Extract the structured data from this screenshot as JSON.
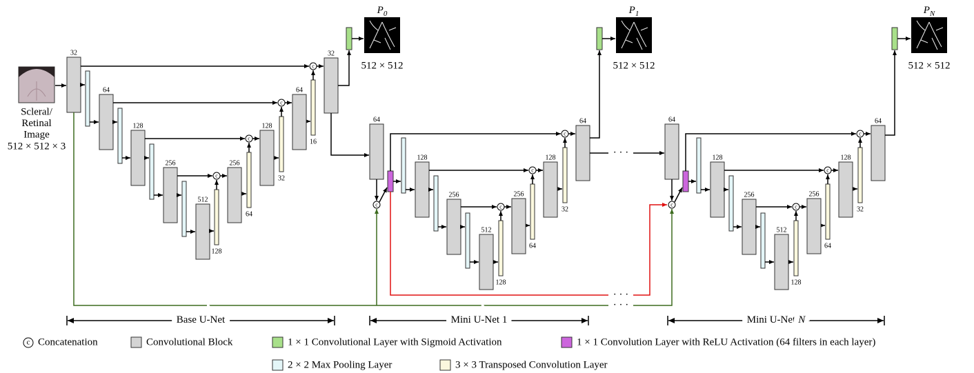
{
  "input": {
    "label": [
      "Scleral/",
      "Retinal",
      "Image"
    ],
    "size": "512 × 512 × 3"
  },
  "concat_symbol": "c",
  "ellipsis": "· · ·",
  "base_unet": {
    "encoder": [
      "32",
      "64",
      "128",
      "256",
      "512"
    ],
    "decoder": [
      "32",
      "64",
      "128",
      "256"
    ],
    "upsample": [
      "16",
      "32",
      "64",
      "128"
    ]
  },
  "mini_unets": [
    {
      "input": "64",
      "encoder": [
        "128",
        "256",
        "512"
      ],
      "decoder": [
        "64",
        "128",
        "256"
      ],
      "upsample": [
        "32",
        "64",
        "128"
      ]
    },
    {
      "input": "64",
      "encoder": [
        "128",
        "256",
        "512"
      ],
      "decoder": [
        "64",
        "128",
        "256"
      ],
      "upsample": [
        "32",
        "64",
        "128"
      ]
    }
  ],
  "outputs": [
    {
      "name": "P",
      "sub": "0",
      "size": "512 × 512"
    },
    {
      "name": "P",
      "sub": "1",
      "size": "512 × 512"
    },
    {
      "name": "P",
      "sub": "N",
      "size": "512 × 512"
    }
  ],
  "sections": [
    {
      "text": "Base U-Net"
    },
    {
      "text": "Mini U-Net 1"
    },
    {
      "text": "Mini U-Net",
      "var": "N"
    }
  ],
  "legend": {
    "concatenation": "Concatenation",
    "conv_block": "Convolutional Block",
    "sigmoid": "1 × 1 Convolutional Layer with Sigmoid Activation",
    "relu": "1 × 1 Convolution Layer with ReLU Activation (64 filters in each layer)",
    "maxpool": "2 × 2 Max Pooling Layer",
    "transposed": "3 × 3 Transposed Convolution Layer"
  }
}
